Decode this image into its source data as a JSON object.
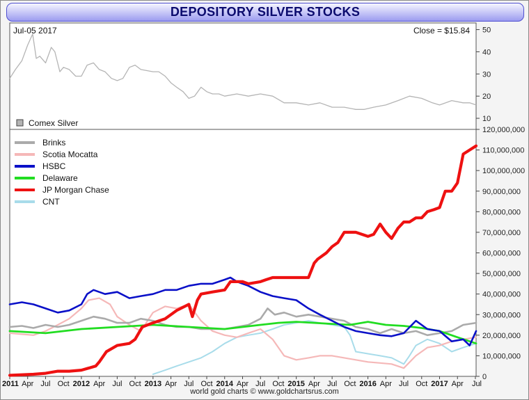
{
  "title": "DEPOSITORY SILVER STOCKS",
  "footer": "world gold charts © www.goldchartsrus.com",
  "upper_panel": {
    "date_label": "Jul-05  2017",
    "close_label": "Close = $15.84",
    "legend": "Comex Silver"
  },
  "colors": {
    "Brinks": "#aaaaaa",
    "Scotia Mocatta": "#f5b8b8",
    "HSBC": "#0a10c8",
    "Delaware": "#22dd22",
    "JP Morgan Chase": "#ee1111",
    "CNT": "#a8dcea",
    "Comex Silver": "#b4b4b4"
  },
  "x_axis_labels": [
    "2011",
    "Apr",
    "Jul",
    "Oct",
    "2012",
    "Apr",
    "Jul",
    "Oct",
    "2013",
    "Apr",
    "Jul",
    "Oct",
    "2014",
    "Apr",
    "Jul",
    "Oct",
    "2015",
    "Apr",
    "Jul",
    "Oct",
    "2016",
    "Apr",
    "Jul",
    "Oct",
    "2017",
    "Apr",
    "Jul"
  ],
  "chart_data": [
    {
      "type": "line",
      "title": "Comex Silver",
      "x_range": [
        2011.0,
        2017.51
      ],
      "ylim": [
        5,
        53
      ],
      "y_ticks": [
        "10",
        "20",
        "30",
        "40",
        "50"
      ],
      "series": [
        {
          "name": "Comex Silver",
          "x": [
            2011.0,
            2011.08,
            2011.17,
            2011.25,
            2011.32,
            2011.37,
            2011.42,
            2011.5,
            2011.58,
            2011.63,
            2011.7,
            2011.75,
            2011.83,
            2011.92,
            2012.0,
            2012.08,
            2012.17,
            2012.25,
            2012.33,
            2012.42,
            2012.5,
            2012.58,
            2012.67,
            2012.75,
            2012.83,
            2013.0,
            2013.08,
            2013.17,
            2013.25,
            2013.33,
            2013.42,
            2013.5,
            2013.58,
            2013.67,
            2013.75,
            2013.83,
            2013.92,
            2014.0,
            2014.17,
            2014.33,
            2014.5,
            2014.67,
            2014.83,
            2015.0,
            2015.17,
            2015.33,
            2015.5,
            2015.67,
            2015.83,
            2015.95,
            2016.08,
            2016.25,
            2016.42,
            2016.58,
            2016.75,
            2016.9,
            2017.0,
            2017.17,
            2017.33,
            2017.42,
            2017.51
          ],
          "y": [
            28,
            32,
            36,
            43,
            48,
            37,
            38,
            35,
            42,
            40,
            31,
            33,
            32,
            29,
            29,
            34,
            35,
            32,
            31,
            28,
            27,
            28,
            33,
            34,
            32,
            31,
            31,
            29,
            26,
            24,
            22,
            19,
            20,
            24,
            22,
            21,
            21,
            20,
            21,
            20,
            21,
            20,
            17,
            17,
            16,
            17,
            15,
            15,
            14,
            14,
            15,
            16,
            18,
            20,
            19,
            17,
            16,
            18,
            17,
            17,
            16
          ]
        }
      ]
    },
    {
      "type": "line",
      "title": "",
      "x_range": [
        2011.0,
        2017.51
      ],
      "ylim": [
        0,
        120000000
      ],
      "y_ticks": [
        "0",
        "10,000,000",
        "20,000,000",
        "30,000,000",
        "40,000,000",
        "50,000,000",
        "60,000,000",
        "70,000,000",
        "80,000,000",
        "90,000,000",
        "100,000,000",
        "110,000,000",
        "120,000,000"
      ],
      "series": [
        {
          "name": "Brinks",
          "x": [
            2011.0,
            2011.17,
            2011.33,
            2011.5,
            2011.67,
            2011.83,
            2012.0,
            2012.17,
            2012.33,
            2012.5,
            2012.67,
            2012.83,
            2013.0,
            2013.17,
            2013.33,
            2013.5,
            2013.67,
            2013.83,
            2014.0,
            2014.17,
            2014.33,
            2014.5,
            2014.6,
            2014.7,
            2014.83,
            2015.0,
            2015.17,
            2015.33,
            2015.5,
            2015.67,
            2015.83,
            2016.0,
            2016.17,
            2016.33,
            2016.5,
            2016.67,
            2016.83,
            2017.0,
            2017.17,
            2017.33,
            2017.51
          ],
          "y": [
            24000000,
            24500000,
            23500000,
            25000000,
            24000000,
            25000000,
            27000000,
            29000000,
            28000000,
            26000000,
            26000000,
            28000000,
            27000000,
            25000000,
            24000000,
            24000000,
            23000000,
            23000000,
            23000000,
            24000000,
            25000000,
            28000000,
            33000000,
            30000000,
            31000000,
            29000000,
            30000000,
            29000000,
            28000000,
            27000000,
            24000000,
            23000000,
            21000000,
            23000000,
            21000000,
            22000000,
            20000000,
            21000000,
            22000000,
            25000000,
            26000000
          ]
        },
        {
          "name": "Scotia Mocatta",
          "x": [
            2011.0,
            2011.17,
            2011.33,
            2011.5,
            2011.67,
            2011.83,
            2012.0,
            2012.1,
            2012.25,
            2012.4,
            2012.5,
            2012.67,
            2012.83,
            2013.0,
            2013.17,
            2013.33,
            2013.5,
            2013.67,
            2013.83,
            2014.0,
            2014.17,
            2014.33,
            2014.5,
            2014.67,
            2014.83,
            2015.0,
            2015.17,
            2015.33,
            2015.5,
            2015.67,
            2015.83,
            2016.0,
            2016.17,
            2016.33,
            2016.5,
            2016.67,
            2016.83,
            2017.0,
            2017.17,
            2017.33,
            2017.51
          ],
          "y": [
            21000000,
            20500000,
            20000000,
            22000000,
            25000000,
            28000000,
            33000000,
            37000000,
            38000000,
            35000000,
            29000000,
            25000000,
            22000000,
            31000000,
            34000000,
            33000000,
            35000000,
            27000000,
            22000000,
            20000000,
            19000000,
            21000000,
            23000000,
            18000000,
            10000000,
            8000000,
            9000000,
            10000000,
            10000000,
            9000000,
            8000000,
            7000000,
            6500000,
            6000000,
            4000000,
            10000000,
            14000000,
            15000000,
            17000000,
            18000000,
            19000000
          ]
        },
        {
          "name": "HSBC",
          "x": [
            2011.0,
            2011.17,
            2011.33,
            2011.5,
            2011.67,
            2011.83,
            2012.0,
            2012.08,
            2012.17,
            2012.33,
            2012.5,
            2012.67,
            2012.83,
            2013.0,
            2013.17,
            2013.33,
            2013.5,
            2013.67,
            2013.83,
            2014.0,
            2014.08,
            2014.17,
            2014.33,
            2014.5,
            2014.67,
            2014.83,
            2015.0,
            2015.17,
            2015.33,
            2015.5,
            2015.67,
            2015.83,
            2016.0,
            2016.17,
            2016.33,
            2016.5,
            2016.67,
            2016.83,
            2017.0,
            2017.17,
            2017.33,
            2017.42,
            2017.51
          ],
          "y": [
            35000000,
            36000000,
            35000000,
            33000000,
            31000000,
            32000000,
            35000000,
            40000000,
            42000000,
            40000000,
            41000000,
            38000000,
            39000000,
            40000000,
            42000000,
            42000000,
            44000000,
            45000000,
            45000000,
            47000000,
            48000000,
            46000000,
            44000000,
            41000000,
            39000000,
            38000000,
            37000000,
            33000000,
            30000000,
            27000000,
            24000000,
            22000000,
            21000000,
            20000000,
            19500000,
            21000000,
            27000000,
            23000000,
            22000000,
            17000000,
            18000000,
            15000000,
            22000000
          ]
        },
        {
          "name": "Delaware",
          "x": [
            2011.0,
            2011.5,
            2012.0,
            2012.5,
            2013.0,
            2013.5,
            2014.0,
            2014.25,
            2014.5,
            2014.75,
            2015.0,
            2015.25,
            2015.5,
            2015.75,
            2016.0,
            2016.25,
            2016.5,
            2016.75,
            2017.0,
            2017.25,
            2017.51
          ],
          "y": [
            22000000,
            21000000,
            23000000,
            24000000,
            25000000,
            24000000,
            23000000,
            24000000,
            25000000,
            26000000,
            26500000,
            26000000,
            25500000,
            25000000,
            26500000,
            25000000,
            24500000,
            23500000,
            22000000,
            19000000,
            16000000
          ]
        },
        {
          "name": "JP Morgan Chase",
          "x": [
            2011.0,
            2011.33,
            2011.5,
            2011.67,
            2011.83,
            2012.0,
            2012.1,
            2012.2,
            2012.25,
            2012.35,
            2012.5,
            2012.67,
            2012.75,
            2012.85,
            2013.0,
            2013.17,
            2013.33,
            2013.5,
            2013.55,
            2013.62,
            2013.67,
            2013.83,
            2014.0,
            2014.08,
            2014.25,
            2014.33,
            2014.5,
            2014.58,
            2014.67,
            2014.83,
            2015.0,
            2015.17,
            2015.25,
            2015.3,
            2015.42,
            2015.5,
            2015.58,
            2015.67,
            2015.83,
            2016.0,
            2016.08,
            2016.17,
            2016.25,
            2016.33,
            2016.42,
            2016.5,
            2016.58,
            2016.67,
            2016.75,
            2016.83,
            2016.92,
            2017.0,
            2017.08,
            2017.17,
            2017.25,
            2017.33,
            2017.42,
            2017.51
          ],
          "y": [
            500000,
            1000000,
            1500000,
            2500000,
            2500000,
            3000000,
            4000000,
            5000000,
            7000000,
            12000000,
            15000000,
            16000000,
            18000000,
            24000000,
            26000000,
            28000000,
            32000000,
            35000000,
            29000000,
            37000000,
            40000000,
            41000000,
            42000000,
            46000000,
            46000000,
            45000000,
            46000000,
            47000000,
            48000000,
            48000000,
            48000000,
            48000000,
            55000000,
            57000000,
            60000000,
            63000000,
            65000000,
            70000000,
            70000000,
            68000000,
            69000000,
            74000000,
            70000000,
            67000000,
            72000000,
            75000000,
            75000000,
            77000000,
            77000000,
            80000000,
            81000000,
            82000000,
            90000000,
            90000000,
            94000000,
            108000000,
            110000000,
            112000000
          ]
        },
        {
          "name": "CNT",
          "x": [
            2013.0,
            2013.17,
            2013.33,
            2013.5,
            2013.67,
            2013.83,
            2014.0,
            2014.17,
            2014.33,
            2014.5,
            2014.67,
            2014.83,
            2015.0,
            2015.17,
            2015.33,
            2015.5,
            2015.67,
            2015.75,
            2015.83,
            2016.0,
            2016.17,
            2016.33,
            2016.5,
            2016.58,
            2016.67,
            2016.83,
            2017.0,
            2017.17,
            2017.33,
            2017.51
          ],
          "y": [
            1000000,
            3000000,
            5000000,
            7000000,
            9000000,
            12000000,
            16000000,
            19000000,
            20000000,
            21000000,
            23000000,
            25000000,
            26000000,
            27000000,
            26000000,
            25000000,
            24000000,
            20000000,
            12000000,
            11000000,
            10000000,
            9000000,
            6000000,
            10000000,
            15000000,
            18000000,
            16000000,
            12000000,
            14000000,
            16000000
          ]
        }
      ]
    }
  ]
}
